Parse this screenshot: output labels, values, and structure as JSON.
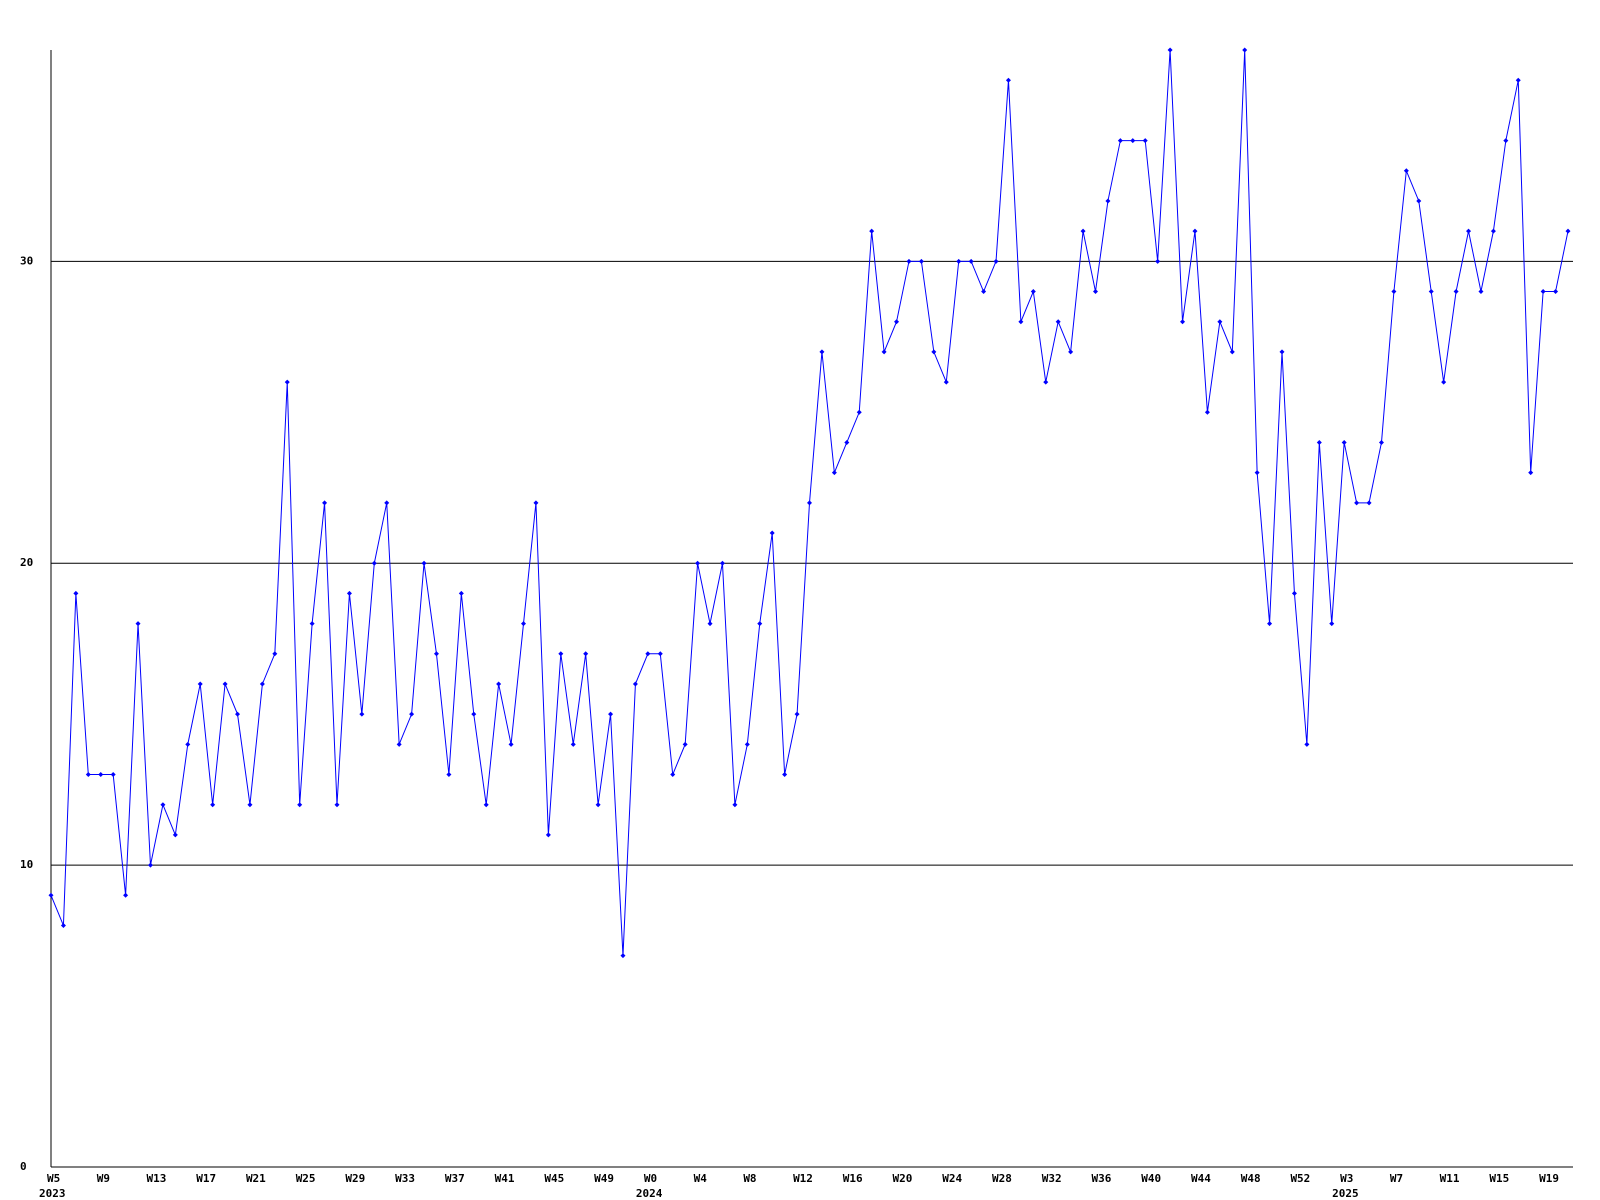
{
  "chart_data": {
    "type": "line",
    "categories": [
      "W5",
      null,
      null,
      null,
      "W9",
      null,
      null,
      null,
      "W13",
      null,
      null,
      null,
      "W17",
      null,
      null,
      null,
      "W21",
      null,
      null,
      null,
      "W25",
      null,
      null,
      null,
      "W29",
      null,
      null,
      null,
      "W33",
      null,
      null,
      null,
      "W37",
      null,
      null,
      null,
      "W41",
      null,
      null,
      null,
      "W45",
      null,
      null,
      null,
      "W49",
      null,
      null,
      null,
      "W0",
      null,
      null,
      null,
      "W4",
      null,
      null,
      null,
      "W8",
      null,
      null,
      null,
      "W12",
      null,
      null,
      null,
      "W16",
      null,
      null,
      null,
      "W20",
      null,
      null,
      null,
      "W24",
      null,
      null,
      null,
      "W28",
      null,
      null,
      null,
      "W32",
      null,
      null,
      null,
      "W36",
      null,
      null,
      null,
      "W40",
      null,
      null,
      null,
      "W44",
      null,
      null,
      null,
      "W48",
      null,
      null,
      null,
      "W52",
      null,
      null,
      null,
      "W3",
      null,
      null,
      null,
      "W7",
      null,
      null,
      null,
      "W11",
      null,
      null,
      null,
      "W15",
      null,
      null,
      null,
      "W19",
      null,
      null
    ],
    "category_years": [
      "2023",
      null,
      null,
      null,
      null,
      null,
      null,
      null,
      null,
      null,
      null,
      null,
      null,
      null,
      null,
      null,
      null,
      null,
      null,
      null,
      null,
      null,
      null,
      null,
      null,
      null,
      null,
      null,
      null,
      null,
      null,
      null,
      null,
      null,
      null,
      null,
      null,
      null,
      null,
      null,
      null,
      null,
      null,
      null,
      null,
      null,
      null,
      null,
      "2024",
      null,
      null,
      null,
      null,
      null,
      null,
      null,
      null,
      null,
      null,
      null,
      null,
      null,
      null,
      null,
      null,
      null,
      null,
      null,
      null,
      null,
      null,
      null,
      null,
      null,
      null,
      null,
      null,
      null,
      null,
      null,
      null,
      null,
      null,
      null,
      null,
      null,
      null,
      null,
      null,
      null,
      null,
      null,
      null,
      null,
      null,
      null,
      null,
      null,
      null,
      null,
      null,
      null,
      null,
      null,
      "2025",
      null,
      null,
      null,
      null,
      null,
      null,
      null,
      null,
      null,
      null,
      null,
      null,
      null,
      null,
      null,
      null,
      null,
      null
    ],
    "series": [
      {
        "color": "#0000ff",
        "values": [
          9,
          8,
          19,
          13,
          13,
          13,
          9,
          18,
          10,
          12,
          11,
          14,
          16,
          12,
          16,
          15,
          12,
          16,
          17,
          26,
          12,
          18,
          22,
          12,
          19,
          15,
          20,
          22,
          14,
          15,
          20,
          17,
          13,
          19,
          15,
          12,
          16,
          14,
          18,
          22,
          11,
          17,
          14,
          17,
          12,
          15,
          7,
          16,
          17,
          17,
          13,
          14,
          20,
          18,
          20,
          12,
          14,
          18,
          21,
          13,
          15,
          22,
          27,
          23,
          24,
          25,
          31,
          27,
          28,
          30,
          30,
          27,
          26,
          30,
          30,
          29,
          30,
          36,
          28,
          29,
          26,
          28,
          27,
          31,
          29,
          32,
          34,
          34,
          34,
          30,
          37,
          28,
          31,
          25,
          28,
          27,
          37,
          23,
          18,
          27,
          19,
          14,
          24,
          18,
          24,
          22,
          22,
          24,
          29,
          33,
          32,
          29,
          26,
          29,
          31,
          29,
          31,
          34,
          36,
          23,
          29,
          29,
          31
        ]
      }
    ],
    "ylim": [
      0,
      37
    ],
    "yticks": [
      0,
      10,
      20,
      30
    ],
    "grid": true
  }
}
